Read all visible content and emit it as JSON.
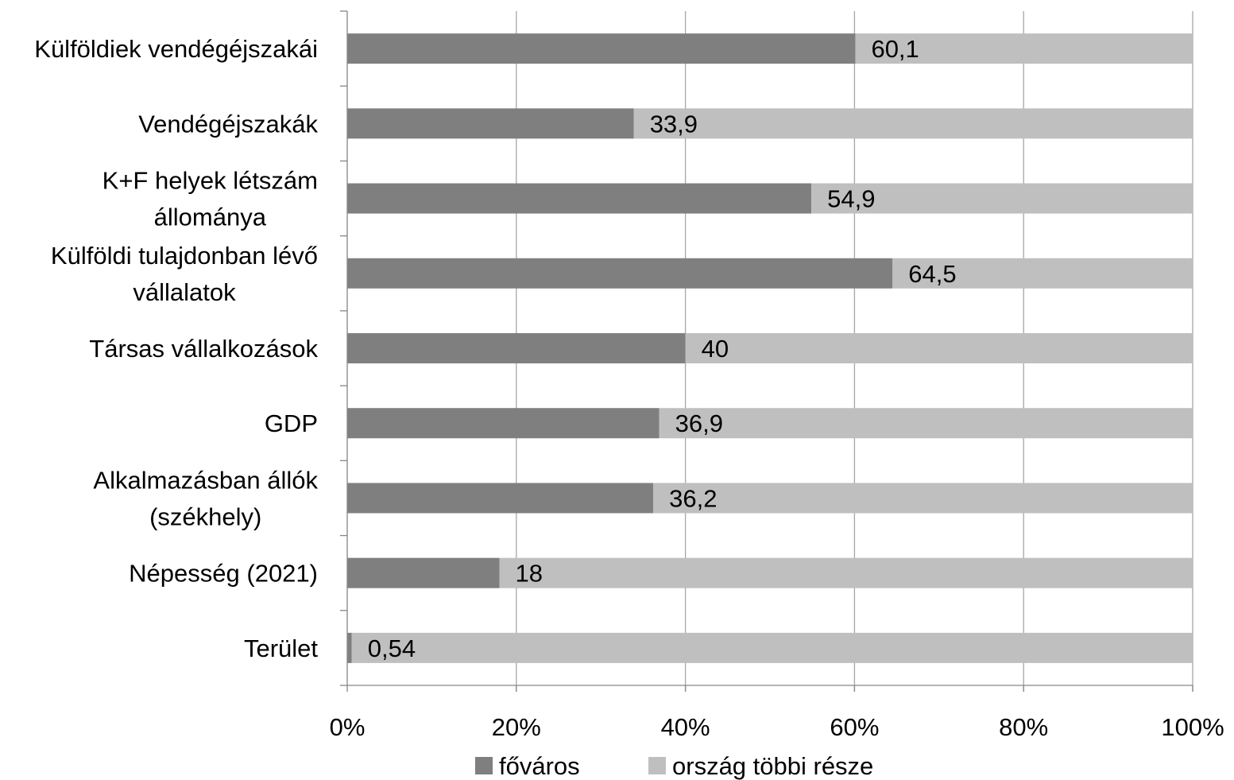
{
  "chart_data": {
    "type": "bar",
    "orientation": "horizontal",
    "stacked": "percent",
    "categories": [
      "Külföldiek vendégéjszakái",
      "Vendégéjszakák",
      "K+F helyek létszám állománya",
      "Külföldi tulajdonban lévő vállalatok",
      "Társas vállalkozások",
      "GDP",
      "Alkalmazásban állók (székhely)",
      "Népesség (2021)",
      "Terület"
    ],
    "category_lines": [
      [
        "Külföldiek vendégéjszakái"
      ],
      [
        "Vendégéjszakák"
      ],
      [
        "K+F helyek létszám",
        "állománya"
      ],
      [
        "Külföldi tulajdonban lévő",
        "vállalatok"
      ],
      [
        "Társas vállalkozások"
      ],
      [
        "GDP"
      ],
      [
        "Alkalmazásban állók",
        "(székhely)"
      ],
      [
        "Népesség (2021)"
      ],
      [
        "Terület"
      ]
    ],
    "series": [
      {
        "name": "főváros",
        "color": "#7f7f7f",
        "values": [
          60.1,
          33.9,
          54.9,
          64.5,
          40,
          36.9,
          36.2,
          18,
          0.54
        ],
        "labels": [
          "60,1",
          "33,9",
          "54,9",
          "64,5",
          "40",
          "36,9",
          "36,2",
          "18",
          "0,54"
        ]
      },
      {
        "name": "ország többi része",
        "color": "#bfbfbf",
        "values": [
          39.9,
          66.1,
          45.1,
          35.5,
          60,
          63.1,
          63.8,
          82,
          99.46
        ]
      }
    ],
    "x_ticks": [
      "0%",
      "20%",
      "40%",
      "60%",
      "80%",
      "100%"
    ],
    "xlim": [
      0,
      100
    ],
    "grid": "vertical",
    "legend": "bottom",
    "gridline_color": "#a6a6a6",
    "axis_color": "#868686"
  }
}
